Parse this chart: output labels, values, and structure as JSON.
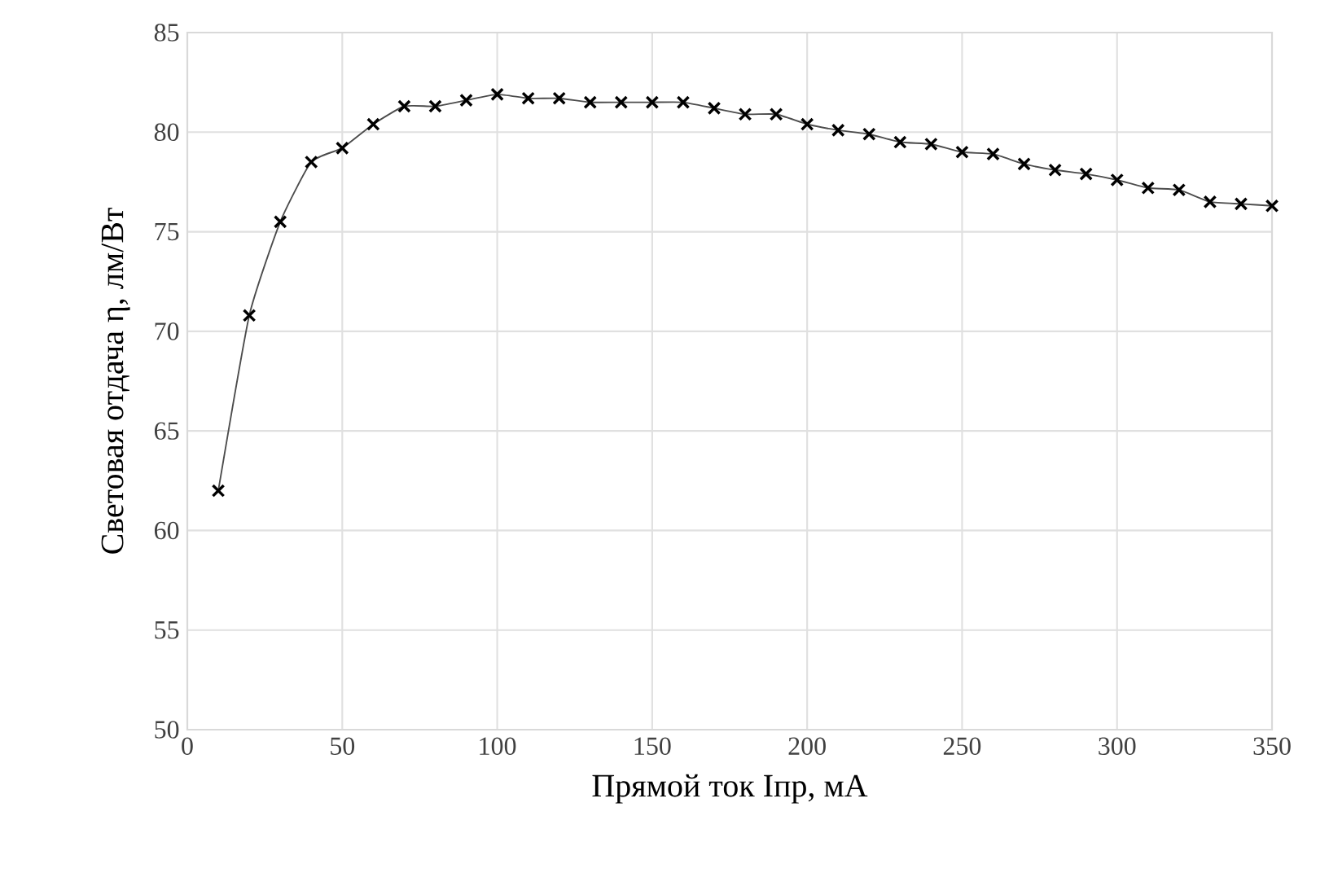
{
  "chart_data": {
    "type": "line",
    "xlabel": "Прямой ток Iпр, мА",
    "ylabel": "Световая отдача η, лм/Вт",
    "x": [
      10,
      20,
      30,
      40,
      50,
      60,
      70,
      80,
      90,
      100,
      110,
      120,
      130,
      140,
      150,
      160,
      170,
      180,
      190,
      200,
      210,
      220,
      230,
      240,
      250,
      260,
      270,
      280,
      290,
      300,
      310,
      320,
      330,
      340,
      350
    ],
    "series": [
      {
        "color": "#000000",
        "values": [
          62.0,
          70.8,
          75.5,
          78.5,
          79.2,
          80.4,
          81.3,
          81.3,
          81.6,
          81.9,
          81.7,
          81.7,
          81.5,
          81.5,
          81.5,
          81.5,
          81.2,
          80.9,
          80.9,
          80.4,
          80.1,
          79.9,
          79.5,
          79.4,
          79.0,
          78.9,
          78.4,
          78.1,
          77.9,
          77.6,
          77.2,
          77.1,
          76.5,
          76.4,
          76.3
        ]
      }
    ],
    "xlim": [
      0,
      350
    ],
    "ylim": [
      50,
      85
    ],
    "xticks": [
      0,
      50,
      100,
      150,
      200,
      250,
      300,
      350
    ],
    "yticks": [
      50,
      55,
      60,
      65,
      70,
      75,
      80,
      85
    ],
    "grid": true,
    "marker": "cross",
    "line_style": "solid"
  }
}
